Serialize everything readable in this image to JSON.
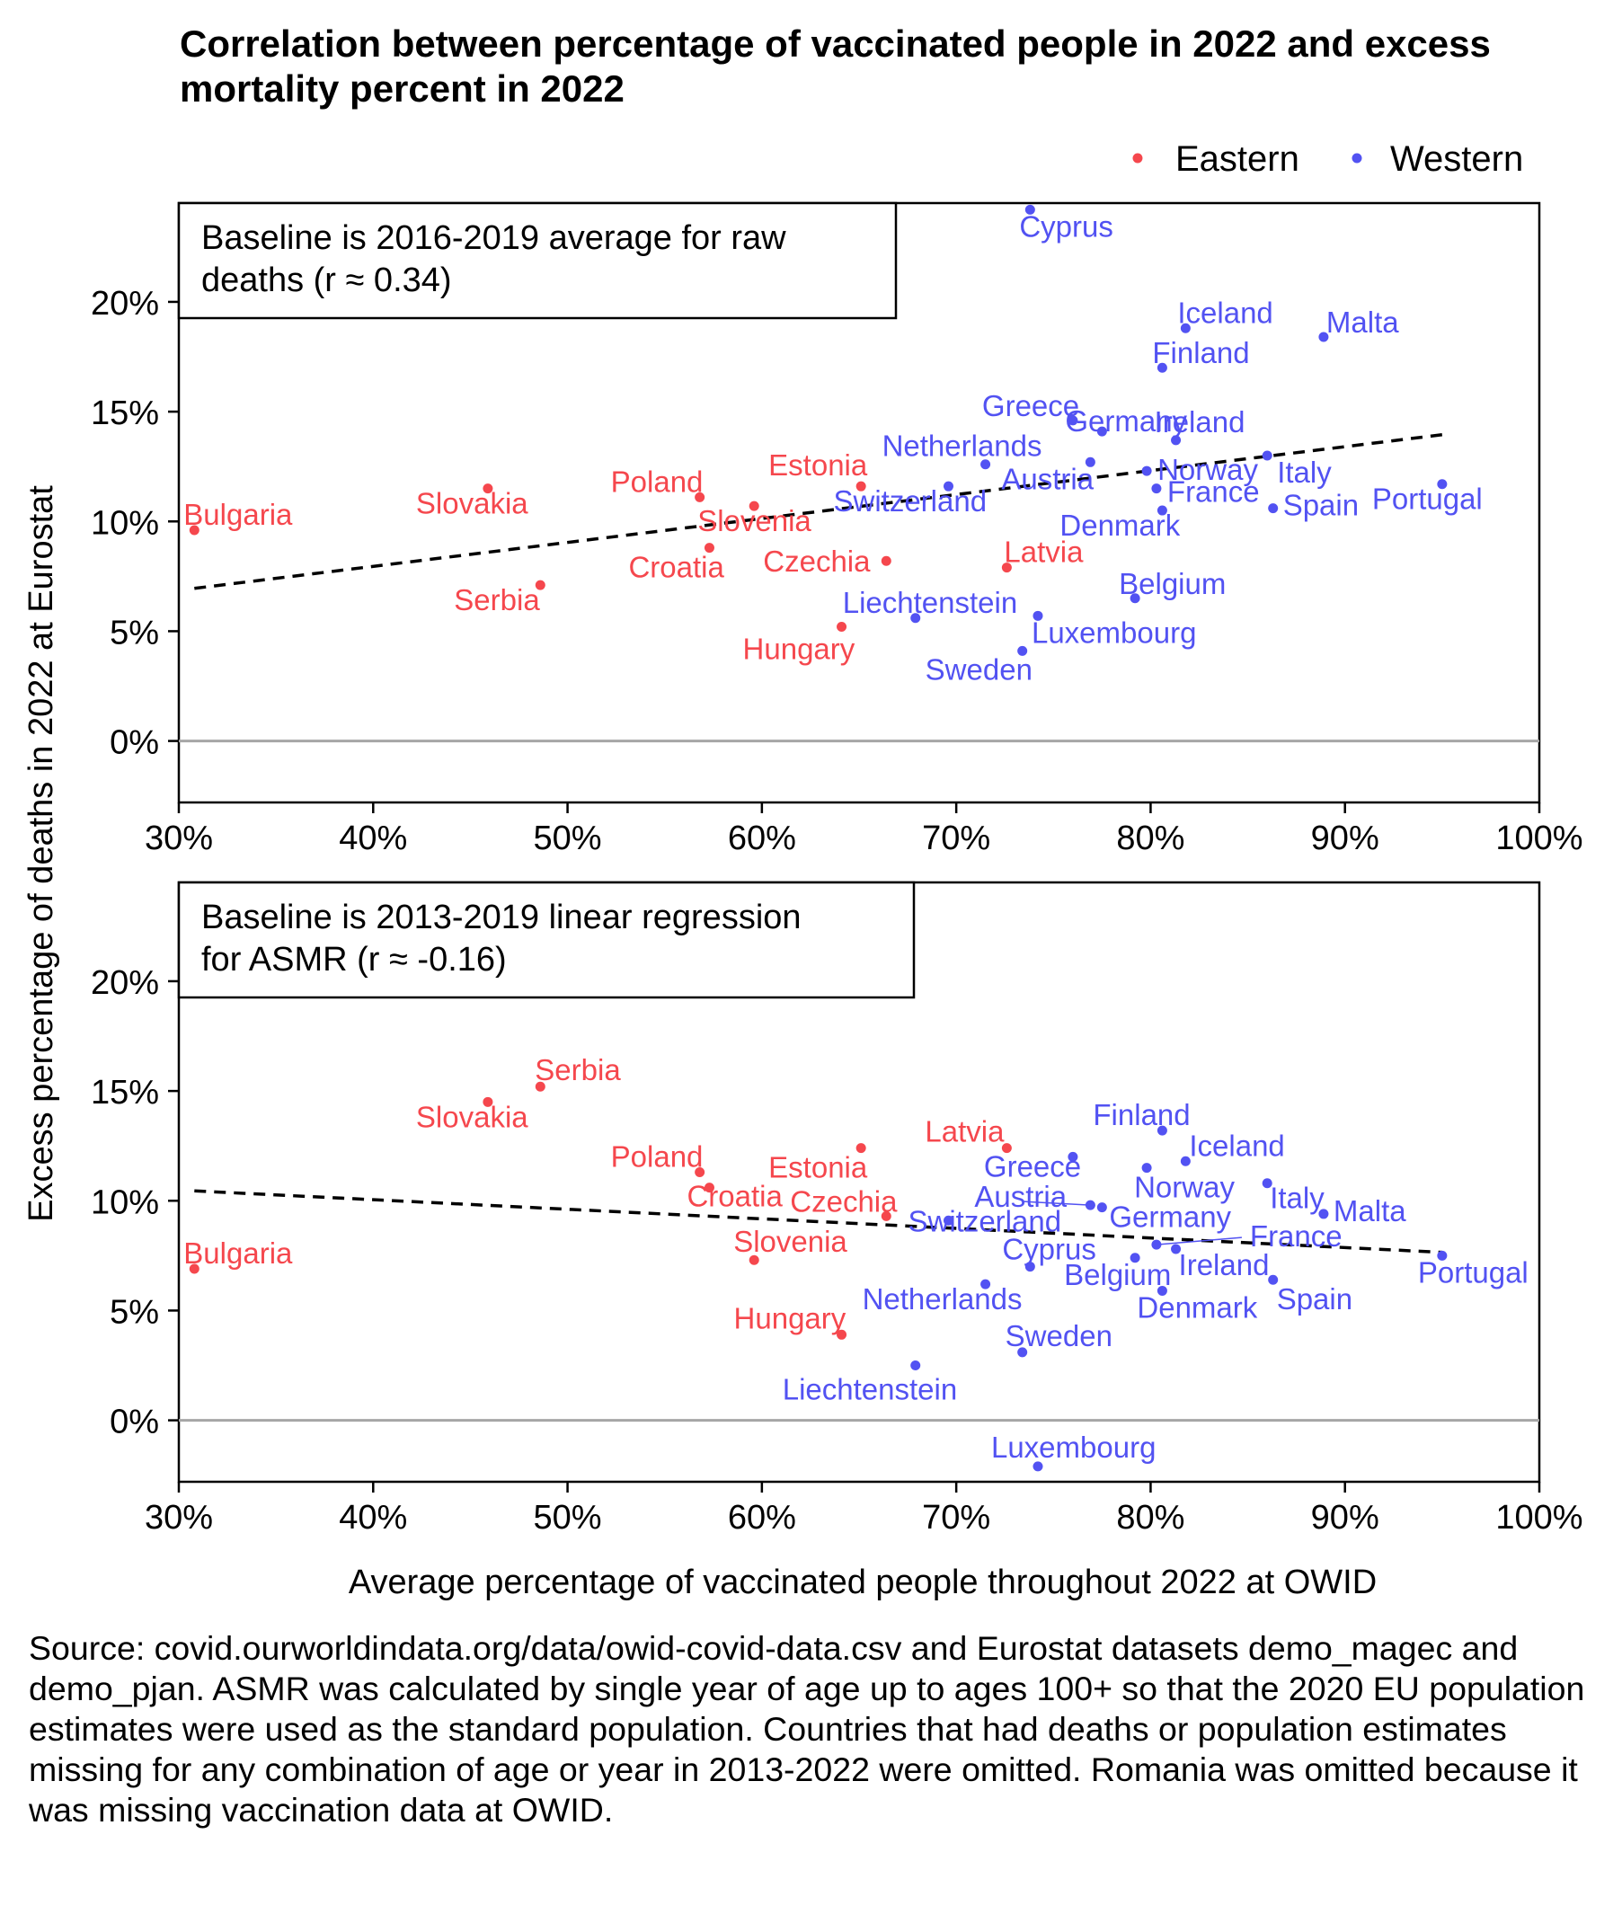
{
  "title": "Correlation between percentage of vaccinated people in 2022 and excess mortality percent in 2022",
  "source_note": "Source: covid.ourworldindata.org/data/owid-covid-data.csv and Eurostat datasets demo_magec and demo_pjan. ASMR was calculated by single year of age up to ages 100+ so that the 2020 EU population estimates were used as the standard population. Countries that had deaths or population estimates missing for any combination of age or year in 2013-2022 were omitted. Romania was omitted because it was missing vaccination data at OWID.",
  "legend": [
    {
      "name": "Eastern",
      "color": "#f5474d"
    },
    {
      "name": "Western",
      "color": "#5252f2"
    }
  ],
  "chart_data": {
    "type": "scatter",
    "xlabel": "Average percentage of vaccinated people throughout 2022 at OWID",
    "ylabel": "Excess percentage of deaths in 2022 at Eurostat",
    "xlim": [
      30,
      100
    ],
    "ylim": [
      -2.8,
      24.5
    ],
    "x_ticks": [
      "30%",
      "40%",
      "50%",
      "60%",
      "70%",
      "80%",
      "90%",
      "100%"
    ],
    "y_ticks": [
      "0%",
      "5%",
      "10%",
      "15%",
      "20%"
    ],
    "panels": [
      {
        "box_line1": "Baseline is 2016-2019 average for raw",
        "box_line2": "deaths (r ≈ 0.34)",
        "trend": [
          [
            30.8,
            6.95
          ],
          [
            95.0,
            13.95
          ]
        ],
        "points": [
          {
            "label": "Bulgaria",
            "group": "Eastern",
            "x": 30.8,
            "y": 9.6
          },
          {
            "label": "Slovakia",
            "group": "Eastern",
            "x": 45.9,
            "y": 11.5
          },
          {
            "label": "Serbia",
            "group": "Eastern",
            "x": 48.6,
            "y": 7.1
          },
          {
            "label": "Poland",
            "group": "Eastern",
            "x": 56.8,
            "y": 11.1
          },
          {
            "label": "Croatia",
            "group": "Eastern",
            "x": 57.3,
            "y": 8.8
          },
          {
            "label": "Slovenia",
            "group": "Eastern",
            "x": 59.6,
            "y": 10.7
          },
          {
            "label": "Hungary",
            "group": "Eastern",
            "x": 64.1,
            "y": 5.2
          },
          {
            "label": "Estonia",
            "group": "Eastern",
            "x": 65.1,
            "y": 11.6
          },
          {
            "label": "Czechia",
            "group": "Eastern",
            "x": 66.4,
            "y": 8.2
          },
          {
            "label": "Latvia",
            "group": "Eastern",
            "x": 72.6,
            "y": 7.9
          },
          {
            "label": "Liechtenstein",
            "group": "Western",
            "x": 67.9,
            "y": 5.6
          },
          {
            "label": "Switzerland",
            "group": "Western",
            "x": 69.6,
            "y": 11.6
          },
          {
            "label": "Netherlands",
            "group": "Western",
            "x": 71.5,
            "y": 12.6
          },
          {
            "label": "Sweden",
            "group": "Western",
            "x": 73.4,
            "y": 4.1
          },
          {
            "label": "Cyprus",
            "group": "Western",
            "x": 73.8,
            "y": 24.2
          },
          {
            "label": "Luxembourg",
            "group": "Western",
            "x": 74.2,
            "y": 5.7
          },
          {
            "label": "Greece",
            "group": "Western",
            "x": 76.0,
            "y": 14.6
          },
          {
            "label": "Austria",
            "group": "Western",
            "x": 76.9,
            "y": 12.7
          },
          {
            "label": "Germany",
            "group": "Western",
            "x": 77.5,
            "y": 14.1
          },
          {
            "label": "Belgium",
            "group": "Western",
            "x": 79.2,
            "y": 6.5
          },
          {
            "label": "Norway",
            "group": "Western",
            "x": 79.8,
            "y": 12.3
          },
          {
            "label": "France",
            "group": "Western",
            "x": 80.3,
            "y": 11.5
          },
          {
            "label": "Denmark",
            "group": "Western",
            "x": 80.6,
            "y": 10.5
          },
          {
            "label": "Finland",
            "group": "Western",
            "x": 80.6,
            "y": 17.0
          },
          {
            "label": "Ireland",
            "group": "Western",
            "x": 81.3,
            "y": 13.7
          },
          {
            "label": "Iceland",
            "group": "Western",
            "x": 81.8,
            "y": 18.8
          },
          {
            "label": "Italy",
            "group": "Western",
            "x": 86.0,
            "y": 13.0
          },
          {
            "label": "Spain",
            "group": "Western",
            "x": 86.3,
            "y": 10.6
          },
          {
            "label": "Malta",
            "group": "Western",
            "x": 88.9,
            "y": 18.4
          },
          {
            "label": "Portugal",
            "group": "Western",
            "x": 95.0,
            "y": 11.7
          }
        ]
      },
      {
        "box_line1": "Baseline is 2013-2019 linear regression",
        "box_line2": "for ASMR (r ≈ -0.16)",
        "trend": [
          [
            30.8,
            10.45
          ],
          [
            95.0,
            7.65
          ]
        ],
        "points": [
          {
            "label": "Bulgaria",
            "group": "Eastern",
            "x": 30.8,
            "y": 6.9
          },
          {
            "label": "Slovakia",
            "group": "Eastern",
            "x": 45.9,
            "y": 14.5
          },
          {
            "label": "Serbia",
            "group": "Eastern",
            "x": 48.6,
            "y": 15.2
          },
          {
            "label": "Poland",
            "group": "Eastern",
            "x": 56.8,
            "y": 11.3
          },
          {
            "label": "Croatia",
            "group": "Eastern",
            "x": 57.3,
            "y": 10.6
          },
          {
            "label": "Slovenia",
            "group": "Eastern",
            "x": 59.6,
            "y": 7.3
          },
          {
            "label": "Hungary",
            "group": "Eastern",
            "x": 64.1,
            "y": 3.9
          },
          {
            "label": "Estonia",
            "group": "Eastern",
            "x": 65.1,
            "y": 12.4
          },
          {
            "label": "Czechia",
            "group": "Eastern",
            "x": 66.4,
            "y": 9.3
          },
          {
            "label": "Latvia",
            "group": "Eastern",
            "x": 72.6,
            "y": 12.4
          },
          {
            "label": "Liechtenstein",
            "group": "Western",
            "x": 67.9,
            "y": 2.5
          },
          {
            "label": "Switzerland",
            "group": "Western",
            "x": 69.6,
            "y": 9.1
          },
          {
            "label": "Netherlands",
            "group": "Western",
            "x": 71.5,
            "y": 6.2
          },
          {
            "label": "Sweden",
            "group": "Western",
            "x": 73.4,
            "y": 3.1
          },
          {
            "label": "Cyprus",
            "group": "Western",
            "x": 73.8,
            "y": 7.0
          },
          {
            "label": "Luxembourg",
            "group": "Western",
            "x": 74.2,
            "y": -2.1
          },
          {
            "label": "Greece",
            "group": "Western",
            "x": 76.0,
            "y": 12.0
          },
          {
            "label": "Austria",
            "group": "Western",
            "x": 76.9,
            "y": 9.8
          },
          {
            "label": "Germany",
            "group": "Western",
            "x": 77.5,
            "y": 9.7
          },
          {
            "label": "Belgium",
            "group": "Western",
            "x": 79.2,
            "y": 7.4
          },
          {
            "label": "Norway",
            "group": "Western",
            "x": 79.8,
            "y": 11.5
          },
          {
            "label": "France",
            "group": "Western",
            "x": 80.3,
            "y": 8.0
          },
          {
            "label": "Denmark",
            "group": "Western",
            "x": 80.6,
            "y": 5.9
          },
          {
            "label": "Finland",
            "group": "Western",
            "x": 80.6,
            "y": 13.2
          },
          {
            "label": "Ireland",
            "group": "Western",
            "x": 81.3,
            "y": 7.8
          },
          {
            "label": "Iceland",
            "group": "Western",
            "x": 81.8,
            "y": 11.8
          },
          {
            "label": "Italy",
            "group": "Western",
            "x": 86.0,
            "y": 10.8
          },
          {
            "label": "Spain",
            "group": "Western",
            "x": 86.3,
            "y": 6.4
          },
          {
            "label": "Malta",
            "group": "Western",
            "x": 88.9,
            "y": 9.4
          },
          {
            "label": "Portugal",
            "group": "Western",
            "x": 95.0,
            "y": 7.5
          }
        ]
      }
    ]
  }
}
